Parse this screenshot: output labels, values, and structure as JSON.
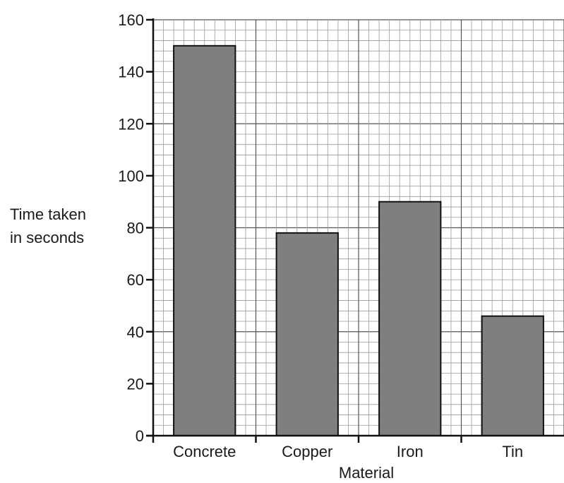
{
  "chart_data": {
    "type": "bar",
    "categories": [
      "Concrete",
      "Copper",
      "Iron",
      "Tin"
    ],
    "values": [
      150,
      78,
      90,
      46
    ],
    "title": "",
    "xlabel": "Material",
    "ylabel": [
      "Time taken",
      "in seconds"
    ],
    "ylim": [
      0,
      160
    ],
    "yticks": [
      "0",
      "20",
      "40",
      "60",
      "80",
      "100",
      "120",
      "140",
      "160"
    ],
    "grid": true,
    "colors": {
      "bar": "#7f7f7f",
      "grid": "#9a9a9a",
      "axis": "#111111"
    }
  }
}
